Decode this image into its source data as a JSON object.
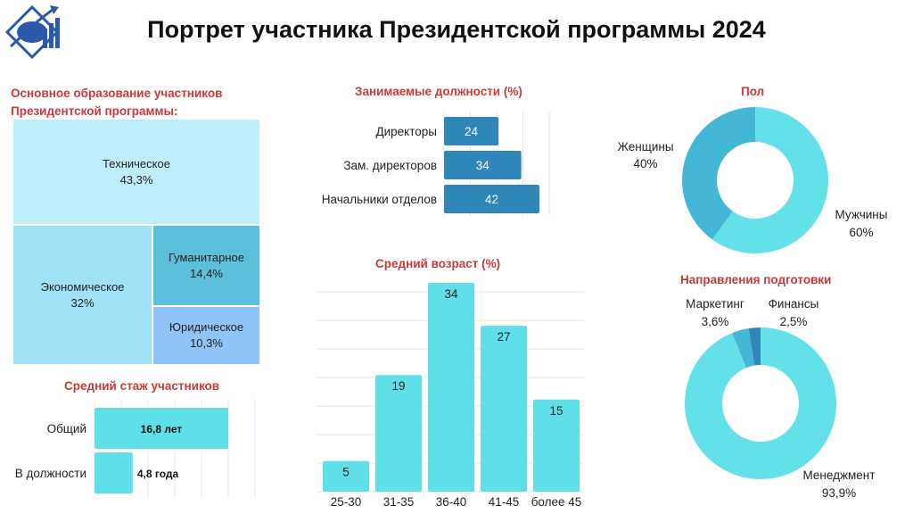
{
  "title": "Портрет участника Президентской программы 2024",
  "logo": {
    "icon": "presidential-program-logo"
  },
  "education": {
    "title_line1": "Основное образование участников",
    "title_line2": "Президентской программы:",
    "items": [
      {
        "label": "Техническое",
        "value": "43,3%",
        "color": "#bfeefb"
      },
      {
        "label": "Экономическое",
        "value": "32%",
        "color": "#9fe2f7"
      },
      {
        "label": "Гуманитарное",
        "value": "14,4%",
        "color": "#5cbfdc"
      },
      {
        "label": "Юридическое",
        "value": "10,3%",
        "color": "#8ec4f7"
      }
    ]
  },
  "positions": {
    "title": "Занимаемые должности (%)",
    "color": "#2f86b8",
    "categories": [
      "Директоры",
      "Зам. директоров",
      "Начальники отделов"
    ],
    "values": [
      24,
      34,
      42
    ],
    "xlim": [
      0,
      50
    ]
  },
  "gender": {
    "title": "Пол",
    "items": [
      {
        "label": "Женщины",
        "value": "40%",
        "share": 40,
        "color": "#44b6d6"
      },
      {
        "label": "Мужчины",
        "value": "60%",
        "share": 60,
        "color": "#63e0e8"
      }
    ]
  },
  "age": {
    "title": "Средний возраст (%)",
    "color": "#5fe0e8",
    "categories": [
      "25-30",
      "31-35",
      "36-40",
      "41-45",
      "более 45"
    ],
    "values": [
      5,
      19,
      34,
      27,
      15
    ],
    "ylim": [
      0,
      36
    ]
  },
  "directions": {
    "title": "Направления подготовки",
    "items": [
      {
        "label": "Менеджмент",
        "value": "93,9%",
        "share": 93.9,
        "color": "#63e0e8"
      },
      {
        "label": "Маркетинг",
        "value": "3,6%",
        "share": 3.6,
        "color": "#44b6d6"
      },
      {
        "label": "Финансы",
        "value": "2,5%",
        "share": 2.5,
        "color": "#2f86b8"
      }
    ]
  },
  "experience": {
    "title": "Средний стаж участников",
    "color": "#5fe0e8",
    "categories": [
      "Общий",
      "В должности"
    ],
    "values": [
      16.8,
      4.8
    ],
    "labels": [
      "16,8 лет",
      "4,8 года"
    ],
    "xlim": [
      0,
      20
    ]
  },
  "chart_data": [
    {
      "type": "treemap",
      "title": "Основное образование участников Президентской программы:",
      "categories": [
        "Техническое",
        "Экономическое",
        "Гуманитарное",
        "Юридическое"
      ],
      "values": [
        43.3,
        32,
        14.4,
        10.3
      ]
    },
    {
      "type": "bar",
      "orientation": "horizontal",
      "title": "Занимаемые должности (%)",
      "categories": [
        "Директоры",
        "Зам. директоров",
        "Начальники отделов"
      ],
      "values": [
        24,
        34,
        42
      ]
    },
    {
      "type": "pie",
      "title": "Пол",
      "categories": [
        "Женщины",
        "Мужчины"
      ],
      "values": [
        40,
        60
      ]
    },
    {
      "type": "bar",
      "title": "Средний возраст (%)",
      "categories": [
        "25-30",
        "31-35",
        "36-40",
        "41-45",
        "более 45"
      ],
      "values": [
        5,
        19,
        34,
        27,
        15
      ]
    },
    {
      "type": "pie",
      "title": "Направления подготовки",
      "categories": [
        "Менеджмент",
        "Маркетинг",
        "Финансы"
      ],
      "values": [
        93.9,
        3.6,
        2.5
      ]
    },
    {
      "type": "bar",
      "orientation": "horizontal",
      "title": "Средний стаж участников",
      "categories": [
        "Общий",
        "В должности"
      ],
      "values": [
        16.8,
        4.8
      ]
    }
  ]
}
